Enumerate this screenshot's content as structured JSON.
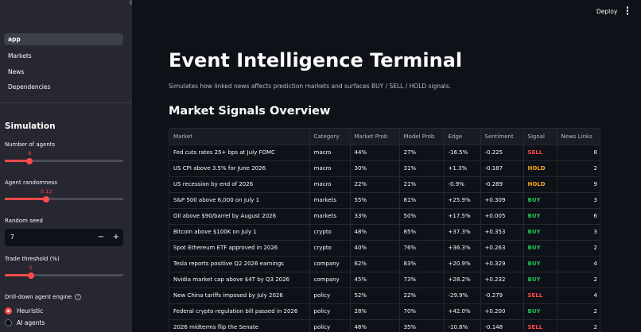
{
  "header": {
    "deploy_label": "Deploy"
  },
  "sidebar": {
    "nav": [
      {
        "label": "app",
        "active": true
      },
      {
        "label": "Markets",
        "active": false
      },
      {
        "label": "News",
        "active": false
      },
      {
        "label": "Dependencies",
        "active": false
      }
    ],
    "heading": "Simulation",
    "agents": {
      "label": "Number of agents",
      "value": "8",
      "fraction": 0.21
    },
    "randomness": {
      "label": "Agent randomness",
      "value": "0.12",
      "fraction": 0.35
    },
    "seed": {
      "label": "Random seed",
      "value": "7",
      "minus": "−",
      "plus": "+"
    },
    "threshold": {
      "label": "Trade threshold (%)",
      "value": "5",
      "fraction": 0.22
    },
    "engine": {
      "label": "Drill-down agent engine",
      "help": "?",
      "options": [
        {
          "label": "Heuristic",
          "selected": true
        },
        {
          "label": "AI agents",
          "selected": false
        }
      ]
    }
  },
  "main": {
    "title": "Event Intelligence Terminal",
    "subtitle": "Simulates how linked news affects prediction markets and surfaces BUY / SELL / HOLD signals.",
    "section_title": "Market Signals Overview",
    "table": {
      "columns": [
        "Market",
        "Category",
        "Market Prob",
        "Model Prob",
        "Edge",
        "Sentiment",
        "Signal",
        "News Links"
      ],
      "rows": [
        [
          "Fed cuts rates 25+ bps at July FOMC",
          "macro",
          "44%",
          "27%",
          "-16.5%",
          "-0.225",
          "SELL",
          "8"
        ],
        [
          "US CPI above 3.5% for June 2026",
          "macro",
          "30%",
          "31%",
          "+1.3%",
          "-0.187",
          "HOLD",
          "2"
        ],
        [
          "US recession by end of 2026",
          "macro",
          "22%",
          "21%",
          "-0.9%",
          "-0.289",
          "HOLD",
          "9"
        ],
        [
          "S&P 500 above 6,000 on July 1",
          "markets",
          "55%",
          "81%",
          "+25.9%",
          "+0.309",
          "BUY",
          "3"
        ],
        [
          "Oil above $90/barrel by August 2026",
          "markets",
          "33%",
          "50%",
          "+17.5%",
          "+0.005",
          "BUY",
          "6"
        ],
        [
          "Bitcoin above $100K on July 1",
          "crypto",
          "48%",
          "85%",
          "+37.3%",
          "+0.353",
          "BUY",
          "3"
        ],
        [
          "Spot Ethereum ETF approved in 2026",
          "crypto",
          "40%",
          "76%",
          "+36.3%",
          "+0.263",
          "BUY",
          "2"
        ],
        [
          "Tesla reports positive Q2 2026 earnings",
          "company",
          "62%",
          "83%",
          "+20.9%",
          "+0.329",
          "BUY",
          "4"
        ],
        [
          "Nvidia market cap above $4T by Q3 2026",
          "company",
          "45%",
          "73%",
          "+28.2%",
          "+0.232",
          "BUY",
          "2"
        ],
        [
          "New China tariffs imposed by July 2026",
          "policy",
          "52%",
          "22%",
          "-29.9%",
          "-0.279",
          "SELL",
          "4"
        ],
        [
          "Federal crypto regulation bill passed in 2026",
          "policy",
          "28%",
          "70%",
          "+42.0%",
          "+0.200",
          "BUY",
          "2"
        ],
        [
          "2026 midterms flip the Senate",
          "policy",
          "46%",
          "35%",
          "-10.8%",
          "-0.148",
          "SELL",
          "2"
        ]
      ]
    }
  }
}
